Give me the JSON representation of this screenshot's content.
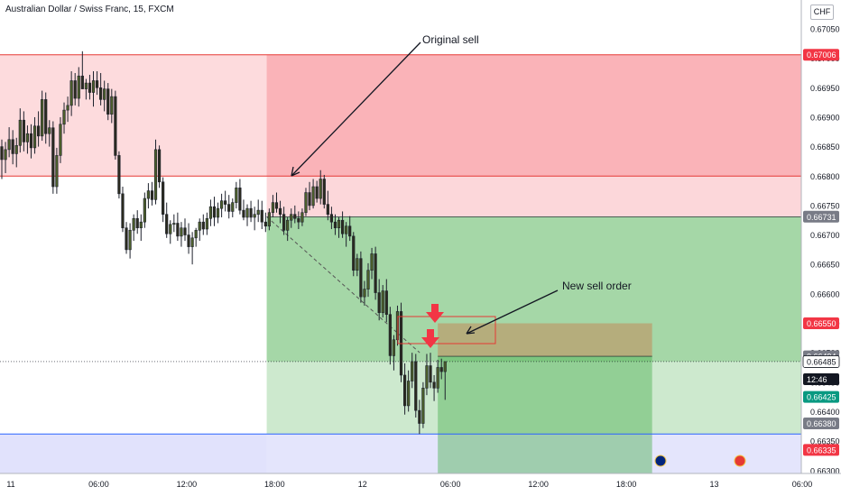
{
  "title": "Australian Dollar / Swiss Franc, 15, FXCM",
  "currency": "CHF",
  "annotations": {
    "original_sell": "Original sell",
    "new_sell_order": "New sell order"
  },
  "colors": {
    "up": "#26a69a",
    "down": "#ef5350",
    "candle": "#1e222d",
    "stop_zone": "#f23645",
    "profit_zone": "#4caf50",
    "support_zone": "#9598f5",
    "red_line": "#e53935",
    "blue_line": "#2962ff"
  },
  "chart_data": {
    "type": "candlestick",
    "symbol": "AUDCHF",
    "timeframe": "15",
    "broker": "FXCM",
    "ylim": [
      0.6629,
      0.6709
    ],
    "y_ticks": [
      0.663,
      0.6635,
      0.664,
      0.6645,
      0.665,
      0.6655,
      0.666,
      0.6665,
      0.667,
      0.6675,
      0.668,
      0.6685,
      0.669,
      0.6695,
      0.67,
      0.6705
    ],
    "x_ticks": [
      {
        "label": "11",
        "bar": 0
      },
      {
        "label": "06:00",
        "bar": 24
      },
      {
        "label": "12:00",
        "bar": 48
      },
      {
        "label": "18:00",
        "bar": 72
      },
      {
        "label": "12",
        "bar": 96
      },
      {
        "label": "06:00",
        "bar": 120
      },
      {
        "label": "12:00",
        "bar": 144
      },
      {
        "label": "18:00",
        "bar": 168
      },
      {
        "label": "13",
        "bar": 192
      },
      {
        "label": "06:00",
        "bar": 216
      }
    ],
    "price_labels": [
      {
        "text": "0.67006",
        "value": 0.67006,
        "bg": "#f23645",
        "fg": "#ffffff"
      },
      {
        "text": "0.66731",
        "value": 0.66731,
        "bg": "#787b86",
        "fg": "#ffffff"
      },
      {
        "text": "0.66550",
        "value": 0.6655,
        "bg": "#f23645",
        "fg": "#ffffff"
      },
      {
        "text": "0.66494",
        "value": 0.66494,
        "bg": "#787b86",
        "fg": "#ffffff"
      },
      {
        "text": "0.66485",
        "value": 0.66485,
        "bg": "#ffffff",
        "fg": "#131722",
        "border": "#131722"
      },
      {
        "text": "12:46",
        "value": 0.66455,
        "bg": "#131722",
        "fg": "#ffffff"
      },
      {
        "text": "0.66425",
        "value": 0.66425,
        "bg": "#089981",
        "fg": "#ffffff"
      },
      {
        "text": "0.66380",
        "value": 0.6638,
        "bg": "#787b86",
        "fg": "#ffffff"
      },
      {
        "text": "0.66335",
        "value": 0.66335,
        "bg": "#f23645",
        "fg": "#ffffff"
      }
    ],
    "levels": {
      "upper_red": 0.67006,
      "mid_red": 0.668,
      "entry": 0.66731,
      "current": 0.66485,
      "blue": 0.66362,
      "new_entry_top": 0.6655,
      "new_entry": 0.66494
    },
    "candles": [
      [
        0.6685,
        0.66862,
        0.66795,
        0.66828
      ],
      [
        0.66828,
        0.66858,
        0.66805,
        0.66845
      ],
      [
        0.66845,
        0.66883,
        0.66832,
        0.66862
      ],
      [
        0.66862,
        0.66878,
        0.6682,
        0.66838
      ],
      [
        0.66838,
        0.66865,
        0.66815,
        0.66852
      ],
      [
        0.66852,
        0.66915,
        0.6684,
        0.66895
      ],
      [
        0.66895,
        0.6691,
        0.66842,
        0.66858
      ],
      [
        0.66858,
        0.66886,
        0.66838,
        0.66872
      ],
      [
        0.66872,
        0.66888,
        0.6683,
        0.66848
      ],
      [
        0.66848,
        0.669,
        0.66838,
        0.66885
      ],
      [
        0.66885,
        0.6691,
        0.6685,
        0.66868
      ],
      [
        0.66868,
        0.66945,
        0.6686,
        0.6693
      ],
      [
        0.6693,
        0.66942,
        0.66855,
        0.66872
      ],
      [
        0.66872,
        0.66895,
        0.6685,
        0.66882
      ],
      [
        0.66882,
        0.66893,
        0.6677,
        0.66782
      ],
      [
        0.66782,
        0.66848,
        0.6677,
        0.66835
      ],
      [
        0.66835,
        0.669,
        0.66822,
        0.66888
      ],
      [
        0.66888,
        0.66925,
        0.66872,
        0.66912
      ],
      [
        0.66912,
        0.66935,
        0.66892,
        0.6692
      ],
      [
        0.6692,
        0.66978,
        0.66902,
        0.66962
      ],
      [
        0.66962,
        0.66975,
        0.6692,
        0.66932
      ],
      [
        0.66932,
        0.66985,
        0.66918,
        0.6697
      ],
      [
        0.6697,
        0.67012,
        0.66955,
        0.66948
      ],
      [
        0.66948,
        0.66965,
        0.6693,
        0.66958
      ],
      [
        0.66958,
        0.66972,
        0.6693,
        0.66942
      ],
      [
        0.66942,
        0.66978,
        0.66918,
        0.66962
      ],
      [
        0.66962,
        0.66978,
        0.66938,
        0.6695
      ],
      [
        0.6695,
        0.66975,
        0.6692,
        0.6693
      ],
      [
        0.6693,
        0.66962,
        0.6691,
        0.66948
      ],
      [
        0.66948,
        0.66958,
        0.66895,
        0.66905
      ],
      [
        0.66905,
        0.66948,
        0.6689,
        0.66935
      ],
      [
        0.66935,
        0.66945,
        0.66828,
        0.66835
      ],
      [
        0.66835,
        0.66842,
        0.66762,
        0.6677
      ],
      [
        0.6677,
        0.66782,
        0.66705,
        0.66712
      ],
      [
        0.66712,
        0.66722,
        0.66668,
        0.66675
      ],
      [
        0.66675,
        0.6672,
        0.6666,
        0.66708
      ],
      [
        0.66708,
        0.66735,
        0.6669,
        0.66728
      ],
      [
        0.66728,
        0.66742,
        0.66702,
        0.66712
      ],
      [
        0.66712,
        0.66735,
        0.6669,
        0.66722
      ],
      [
        0.66722,
        0.66772,
        0.66712,
        0.66762
      ],
      [
        0.66762,
        0.66788,
        0.66745,
        0.66775
      ],
      [
        0.66775,
        0.6679,
        0.6675,
        0.6676
      ],
      [
        0.6676,
        0.66862,
        0.66752,
        0.66845
      ],
      [
        0.66845,
        0.66852,
        0.6678,
        0.6679
      ],
      [
        0.6679,
        0.66798,
        0.66722,
        0.66735
      ],
      [
        0.66735,
        0.66755,
        0.66695,
        0.66702
      ],
      [
        0.66702,
        0.66725,
        0.66685,
        0.66718
      ],
      [
        0.66718,
        0.66735,
        0.66705,
        0.6672
      ],
      [
        0.6672,
        0.66738,
        0.6669,
        0.66698
      ],
      [
        0.66698,
        0.66722,
        0.6668,
        0.66712
      ],
      [
        0.66712,
        0.66728,
        0.6669,
        0.667
      ],
      [
        0.667,
        0.6672,
        0.66668,
        0.6668
      ],
      [
        0.6668,
        0.66705,
        0.6665,
        0.66695
      ],
      [
        0.66695,
        0.66712,
        0.6668,
        0.66708
      ],
      [
        0.66708,
        0.66728,
        0.6669,
        0.66722
      ],
      [
        0.66722,
        0.66735,
        0.667,
        0.6671
      ],
      [
        0.6671,
        0.66738,
        0.667,
        0.66728
      ],
      [
        0.66728,
        0.6676,
        0.66715,
        0.66748
      ],
      [
        0.66748,
        0.66765,
        0.66715,
        0.6673
      ],
      [
        0.6673,
        0.66755,
        0.6672,
        0.66745
      ],
      [
        0.66745,
        0.6677,
        0.6673,
        0.66758
      ],
      [
        0.66758,
        0.66775,
        0.6674,
        0.66752
      ],
      [
        0.66752,
        0.66768,
        0.66728,
        0.6674
      ],
      [
        0.6674,
        0.66762,
        0.6673,
        0.66755
      ],
      [
        0.66755,
        0.6679,
        0.66745,
        0.6678
      ],
      [
        0.6678,
        0.66795,
        0.66735,
        0.66742
      ],
      [
        0.66742,
        0.6676,
        0.66725,
        0.6673
      ],
      [
        0.6673,
        0.66752,
        0.66715,
        0.66745
      ],
      [
        0.66745,
        0.66758,
        0.66722,
        0.6673
      ],
      [
        0.6673,
        0.66748,
        0.66708,
        0.66735
      ],
      [
        0.66735,
        0.6676,
        0.66722,
        0.66742
      ],
      [
        0.66742,
        0.66758,
        0.6671,
        0.66722
      ],
      [
        0.66722,
        0.66738,
        0.66705,
        0.66715
      ],
      [
        0.66715,
        0.66745,
        0.66708,
        0.66738
      ],
      [
        0.66738,
        0.66768,
        0.6673,
        0.66755
      ],
      [
        0.66755,
        0.66772,
        0.66738,
        0.66745
      ],
      [
        0.66745,
        0.66758,
        0.6672,
        0.66735
      ],
      [
        0.66735,
        0.66748,
        0.667,
        0.66708
      ],
      [
        0.66708,
        0.6673,
        0.6669,
        0.66725
      ],
      [
        0.66725,
        0.66745,
        0.66712,
        0.66735
      ],
      [
        0.66735,
        0.6675,
        0.6672,
        0.66728
      ],
      [
        0.66728,
        0.6674,
        0.6671,
        0.66722
      ],
      [
        0.66722,
        0.66745,
        0.66715,
        0.66738
      ],
      [
        0.66738,
        0.6678,
        0.66732,
        0.66772
      ],
      [
        0.66772,
        0.6679,
        0.66742,
        0.6675
      ],
      [
        0.6675,
        0.66795,
        0.66745,
        0.66782
      ],
      [
        0.66782,
        0.66792,
        0.66755,
        0.66762
      ],
      [
        0.66762,
        0.6681,
        0.66752,
        0.66795
      ],
      [
        0.66795,
        0.66802,
        0.66745,
        0.66752
      ],
      [
        0.66752,
        0.66775,
        0.66725,
        0.66735
      ],
      [
        0.66735,
        0.66748,
        0.6671,
        0.66722
      ],
      [
        0.66722,
        0.66735,
        0.667,
        0.66712
      ],
      [
        0.66712,
        0.6673,
        0.66695,
        0.66725
      ],
      [
        0.66725,
        0.6674,
        0.66695,
        0.66702
      ],
      [
        0.66702,
        0.66722,
        0.6668,
        0.66715
      ],
      [
        0.66715,
        0.66732,
        0.6669,
        0.66698
      ],
      [
        0.66698,
        0.66705,
        0.6663,
        0.6664
      ],
      [
        0.6664,
        0.66668,
        0.6663,
        0.6666
      ],
      [
        0.6666,
        0.66672,
        0.66585,
        0.66595
      ],
      [
        0.66595,
        0.66622,
        0.6658,
        0.66608
      ],
      [
        0.66608,
        0.66652,
        0.66595,
        0.6664
      ],
      [
        0.6664,
        0.66678,
        0.66625,
        0.66668
      ],
      [
        0.66668,
        0.6668,
        0.6659,
        0.66602
      ],
      [
        0.66602,
        0.66625,
        0.66555,
        0.66568
      ],
      [
        0.66568,
        0.66615,
        0.6656,
        0.66605
      ],
      [
        0.66605,
        0.66625,
        0.66552,
        0.66565
      ],
      [
        0.66565,
        0.66578,
        0.6648,
        0.66495
      ],
      [
        0.66495,
        0.6653,
        0.6647,
        0.66522
      ],
      [
        0.66522,
        0.6658,
        0.66512,
        0.6657
      ],
      [
        0.6657,
        0.66585,
        0.6645,
        0.66462
      ],
      [
        0.66462,
        0.66482,
        0.66395,
        0.6641
      ],
      [
        0.6641,
        0.6647,
        0.664,
        0.66452
      ],
      [
        0.66452,
        0.665,
        0.6644,
        0.66485
      ],
      [
        0.66485,
        0.66498,
        0.6639,
        0.66402
      ],
      [
        0.66402,
        0.6642,
        0.66362,
        0.6638
      ],
      [
        0.6638,
        0.6645,
        0.66372,
        0.6644
      ],
      [
        0.6644,
        0.66498,
        0.66428,
        0.66478
      ],
      [
        0.66478,
        0.665,
        0.6644,
        0.6645
      ],
      [
        0.6645,
        0.66462,
        0.66418,
        0.6644
      ],
      [
        0.6644,
        0.66488,
        0.66432,
        0.66475
      ],
      [
        0.66475,
        0.6649,
        0.66455,
        0.66468
      ],
      [
        0.66468,
        0.6648,
        0.6642,
        0.66485
      ]
    ]
  }
}
